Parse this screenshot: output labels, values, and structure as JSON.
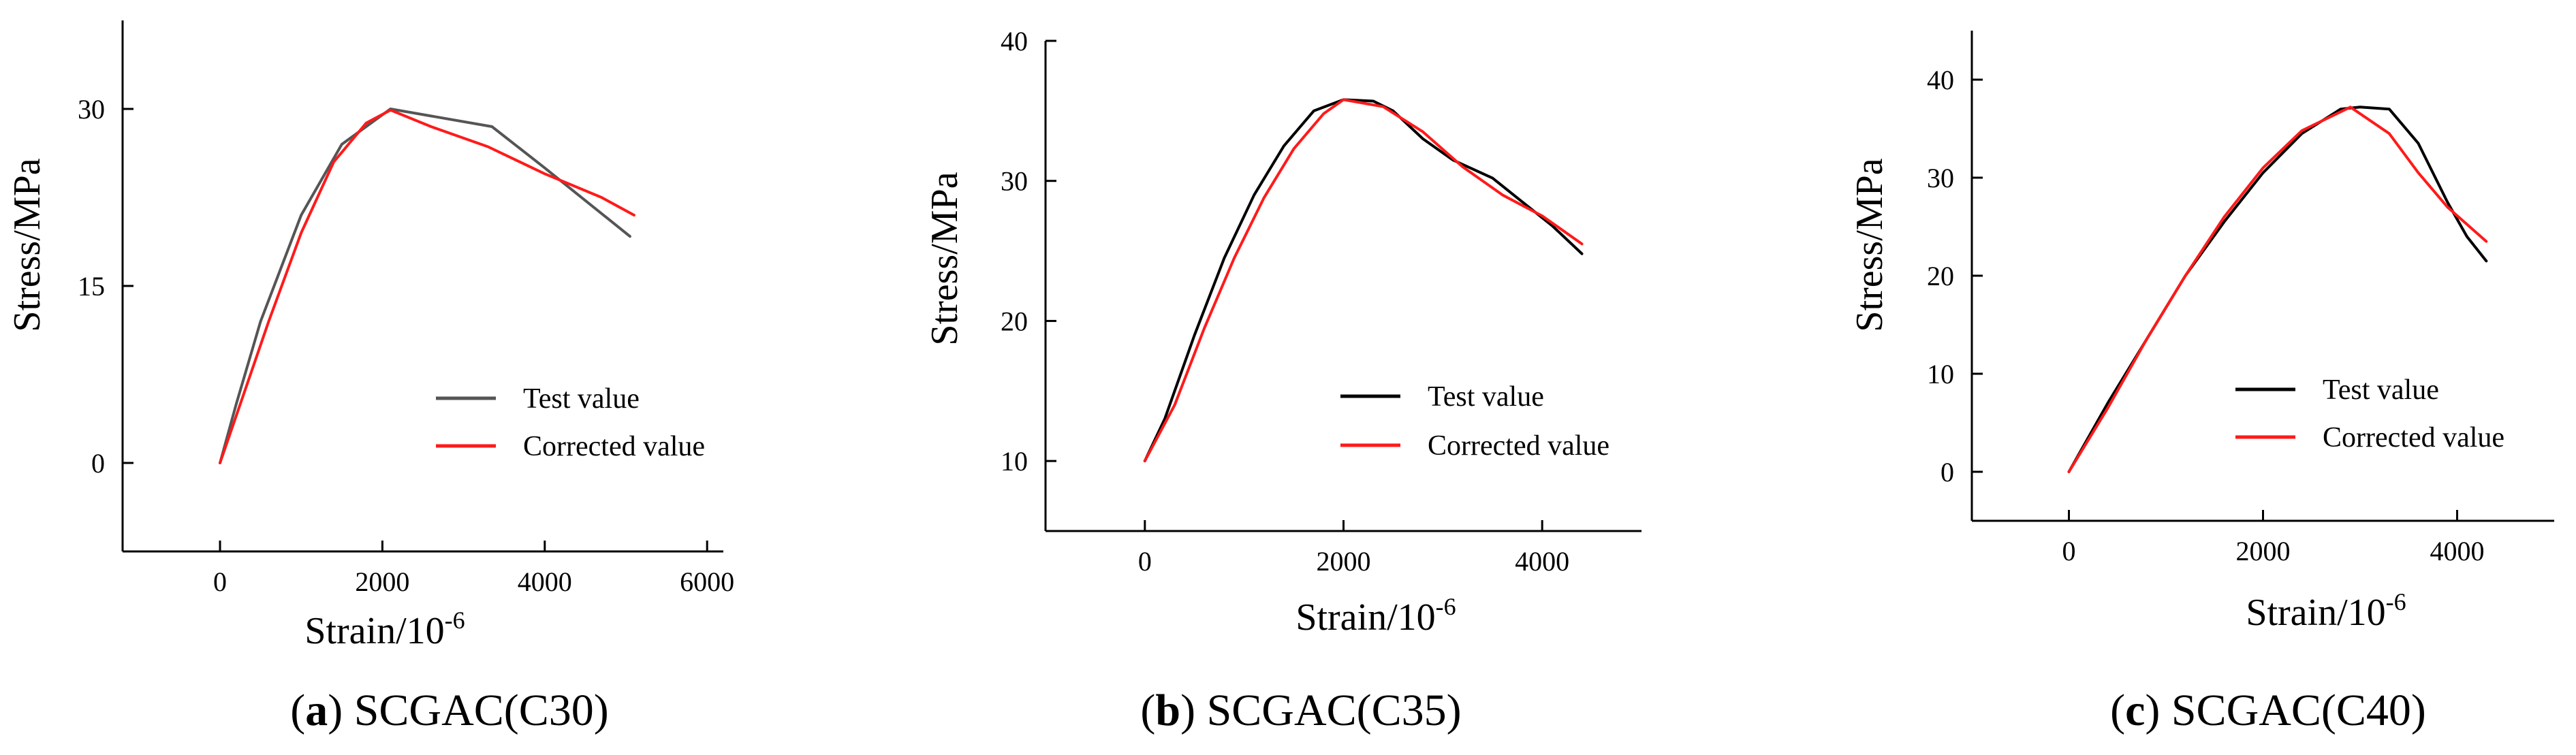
{
  "colors": {
    "test": "#000000",
    "test_a": "#555555",
    "corrected": "#ff1a1a",
    "axis": "#000000"
  },
  "chart_data": [
    {
      "type": "line",
      "panel_id": "a",
      "caption_letter": "a",
      "caption_text": "SCGAC(C30)",
      "caption_open": "(",
      "caption_close": ")",
      "xlabel": "Strain/10",
      "xlabel_sup": "-6",
      "ylabel": "Stress/MPa",
      "xlim": [
        -1200,
        6200
      ],
      "ylim": [
        -7.5,
        37.5
      ],
      "xticks": [
        0,
        2000,
        4000,
        6000
      ],
      "xtick_labels": [
        "0",
        "2000",
        "4000",
        "6000"
      ],
      "yticks": [
        0,
        15,
        30
      ],
      "ytick_labels": [
        "0",
        "15",
        "30"
      ],
      "legend": [
        "Test value",
        "Corrected value"
      ],
      "series": [
        {
          "name": "Test value",
          "color_key": "test_a",
          "x": [
            0,
            200,
            500,
            1000,
            1500,
            2100,
            3350,
            4000,
            5050
          ],
          "y": [
            0,
            5,
            12,
            21,
            27,
            30,
            28.5,
            25,
            19.2
          ]
        },
        {
          "name": "Corrected value",
          "color_key": "corrected",
          "x": [
            0,
            300,
            600,
            1000,
            1400,
            1800,
            2100,
            2600,
            3300,
            4000,
            4700,
            5100
          ],
          "y": [
            0,
            6,
            12,
            19.5,
            25.5,
            28.8,
            29.9,
            28.5,
            26.8,
            24.5,
            22.5,
            21
          ]
        }
      ]
    },
    {
      "type": "line",
      "panel_id": "b",
      "caption_letter": "b",
      "caption_text": "SCGAC(C35)",
      "caption_open": "(",
      "caption_close": ")",
      "xlabel": "Strain/10",
      "xlabel_sup": "-6",
      "ylabel": "Stress/MPa",
      "xlim": [
        -1000,
        5000
      ],
      "ylim": [
        5,
        40
      ],
      "xticks": [
        0,
        2000,
        4000
      ],
      "xtick_labels": [
        "0",
        "2000",
        "4000"
      ],
      "yticks": [
        10,
        20,
        30,
        40
      ],
      "ytick_labels": [
        "10",
        "20",
        "30",
        "40"
      ],
      "legend": [
        "Test value",
        "Corrected value"
      ],
      "series": [
        {
          "name": "Test value",
          "color_key": "test",
          "x": [
            0,
            200,
            500,
            800,
            1100,
            1400,
            1700,
            2000,
            2300,
            2500,
            2800,
            3100,
            3500,
            3800,
            4100,
            4400
          ],
          "y": [
            10,
            13,
            19,
            24.5,
            29,
            32.5,
            35,
            35.8,
            35.7,
            35,
            33,
            31.5,
            30.2,
            28.5,
            26.8,
            24.8
          ]
        },
        {
          "name": "Corrected value",
          "color_key": "corrected",
          "x": [
            0,
            300,
            600,
            900,
            1200,
            1500,
            1800,
            2000,
            2400,
            2800,
            3200,
            3600,
            4000,
            4400
          ],
          "y": [
            10,
            14,
            19.5,
            24.5,
            28.8,
            32.3,
            34.8,
            35.8,
            35.3,
            33.5,
            31,
            29,
            27.5,
            25.5
          ]
        }
      ]
    },
    {
      "type": "line",
      "panel_id": "c",
      "caption_letter": "c",
      "caption_text": "SCGAC(C40)",
      "caption_open": "(",
      "caption_close": ")",
      "xlabel": "Strain/10",
      "xlabel_sup": "-6",
      "ylabel": "Stress/MPa",
      "xlim": [
        -1000,
        5000
      ],
      "ylim": [
        -5,
        45
      ],
      "xticks": [
        0,
        2000,
        4000
      ],
      "xtick_labels": [
        "0",
        "2000",
        "4000"
      ],
      "yticks": [
        0,
        10,
        20,
        30,
        40
      ],
      "ytick_labels": [
        "0",
        "10",
        "20",
        "30",
        "40"
      ],
      "legend": [
        "Test value",
        "Corrected value"
      ],
      "series": [
        {
          "name": "Test value",
          "color_key": "test",
          "x": [
            0,
            400,
            800,
            1200,
            1600,
            2000,
            2400,
            2800,
            3000,
            3300,
            3600,
            3900,
            4100,
            4300
          ],
          "y": [
            0,
            7,
            13.5,
            20,
            25.5,
            30.5,
            34.5,
            37,
            37.2,
            37,
            33.5,
            27.5,
            24,
            21.5
          ]
        },
        {
          "name": "Corrected value",
          "color_key": "corrected",
          "x": [
            0,
            400,
            800,
            1200,
            1600,
            2000,
            2400,
            2900,
            3300,
            3600,
            3900,
            4300
          ],
          "y": [
            0,
            6.5,
            13.5,
            20,
            26,
            31,
            34.8,
            37.2,
            34.5,
            30.5,
            27,
            23.5
          ]
        }
      ]
    }
  ]
}
